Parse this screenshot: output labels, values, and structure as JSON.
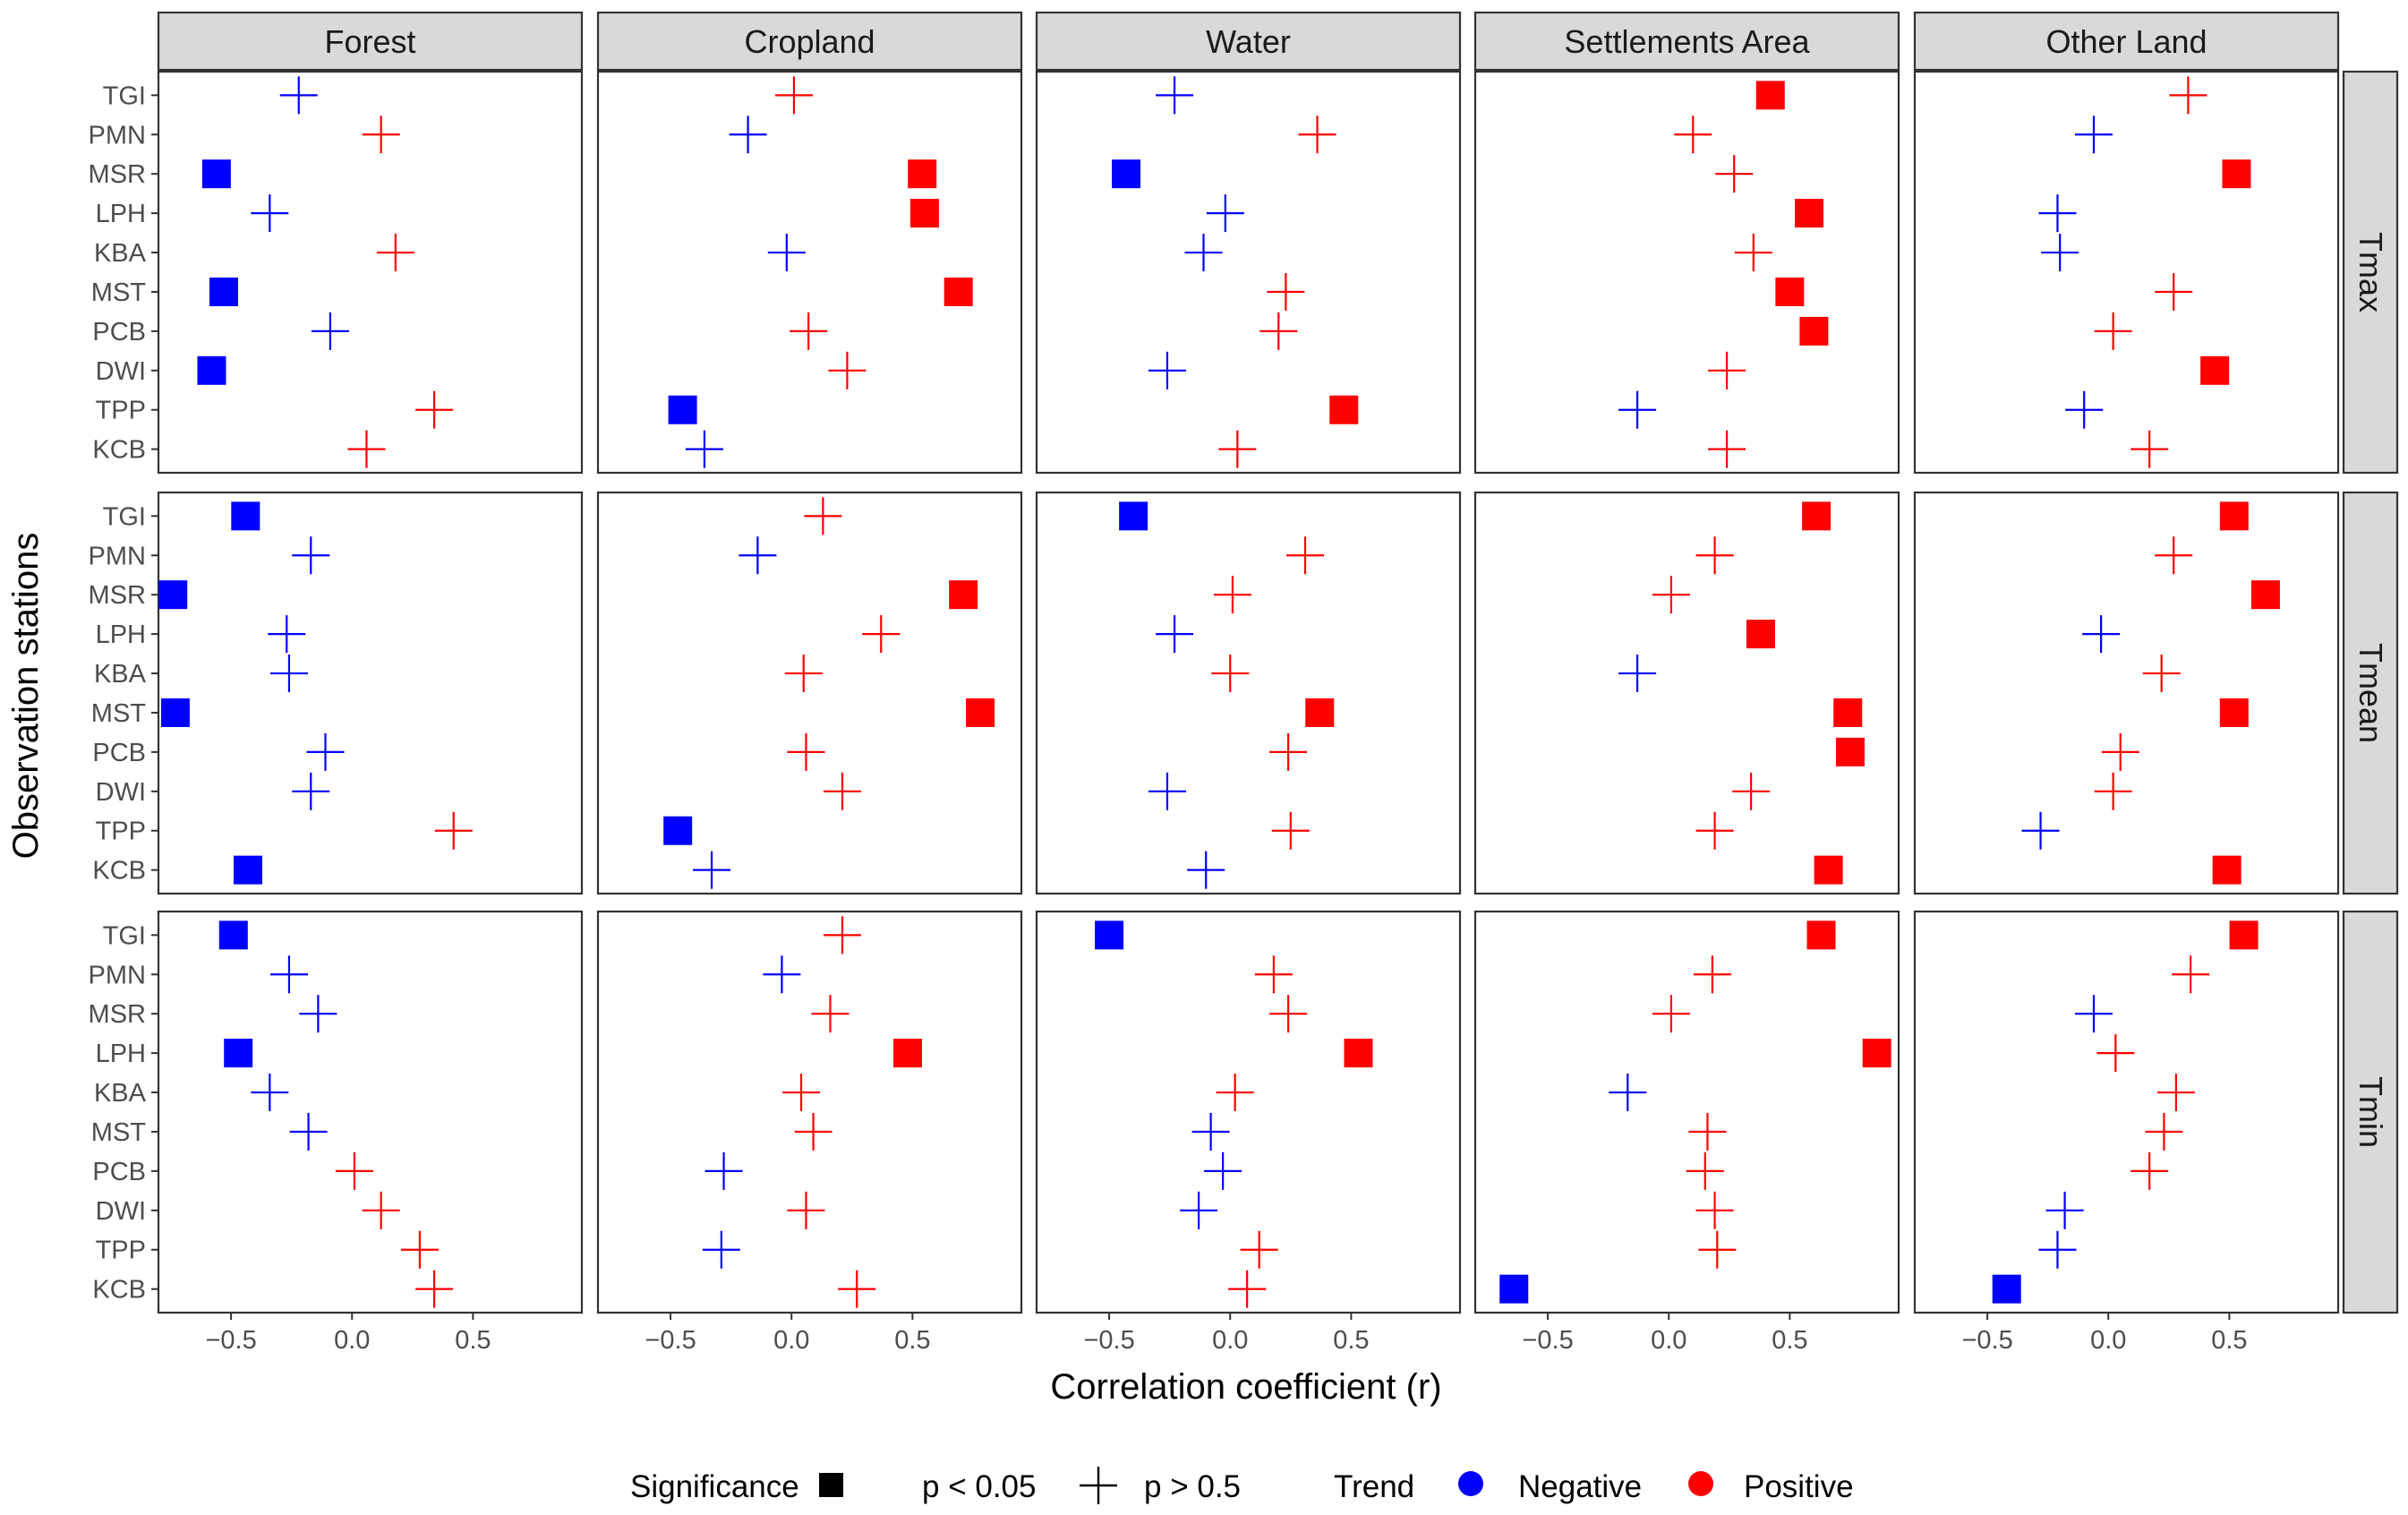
{
  "chart_data": {
    "type": "scatter",
    "title": "",
    "xlabel": "Correlation coefficient (r)",
    "ylabel": "Observation stations",
    "xlim": [
      -0.8,
      0.95
    ],
    "x_ticks": [
      -0.5,
      0.0,
      0.5
    ],
    "x_tick_labels": [
      "−0.5",
      "0.0",
      "0.5"
    ],
    "grid": false,
    "facets": {
      "columns": [
        "Forest",
        "Cropland",
        "Water",
        "Settlements Area",
        "Other Land"
      ],
      "rows": [
        "Tmax",
        "Tmean",
        "Tmin"
      ]
    },
    "stations": [
      "TGI",
      "PMN",
      "MSR",
      "LPH",
      "KBA",
      "MST",
      "PCB",
      "DWI",
      "TPP",
      "KCB"
    ],
    "colors": {
      "negative": "#0000ff",
      "positive": "#ff0000"
    },
    "legend": {
      "position": "bottom",
      "significance_title": "Significance",
      "significant_label": "p < 0.05",
      "nonsignificant_label": "p >  0.5",
      "trend_title": "Trend",
      "negative_label": "Negative",
      "positive_label": "Positive"
    },
    "encoding": "each cell: [r, significant(1 = square, 0 = cross)]; color = sign of r",
    "values": {
      "Tmax": {
        "Forest": [
          [
            -0.22,
            0
          ],
          [
            0.12,
            0
          ],
          [
            -0.56,
            1
          ],
          [
            -0.34,
            0
          ],
          [
            0.18,
            0
          ],
          [
            -0.53,
            1
          ],
          [
            -0.09,
            0
          ],
          [
            -0.58,
            1
          ],
          [
            0.34,
            0
          ],
          [
            0.06,
            0
          ]
        ],
        "Cropland": [
          [
            0.01,
            0
          ],
          [
            -0.18,
            0
          ],
          [
            0.54,
            1
          ],
          [
            0.55,
            1
          ],
          [
            -0.02,
            0
          ],
          [
            0.69,
            1
          ],
          [
            0.07,
            0
          ],
          [
            0.23,
            0
          ],
          [
            -0.45,
            1
          ],
          [
            -0.36,
            0
          ]
        ],
        "Water": [
          [
            -0.23,
            0
          ],
          [
            0.36,
            0
          ],
          [
            -0.43,
            1
          ],
          [
            -0.02,
            0
          ],
          [
            -0.11,
            0
          ],
          [
            0.23,
            0
          ],
          [
            0.2,
            0
          ],
          [
            -0.26,
            0
          ],
          [
            0.47,
            1
          ],
          [
            0.03,
            0
          ]
        ],
        "Settlements Area": [
          [
            0.42,
            1
          ],
          [
            0.1,
            0
          ],
          [
            0.27,
            0
          ],
          [
            0.58,
            1
          ],
          [
            0.35,
            0
          ],
          [
            0.5,
            1
          ],
          [
            0.6,
            1
          ],
          [
            0.24,
            0
          ],
          [
            -0.13,
            0
          ],
          [
            0.24,
            0
          ]
        ],
        "Other Land": [
          [
            0.33,
            0
          ],
          [
            -0.06,
            0
          ],
          [
            0.53,
            1
          ],
          [
            -0.21,
            0
          ],
          [
            -0.2,
            0
          ],
          [
            0.27,
            0
          ],
          [
            0.02,
            0
          ],
          [
            0.44,
            1
          ],
          [
            -0.1,
            0
          ],
          [
            0.17,
            0
          ]
        ]
      },
      "Tmean": {
        "Forest": [
          [
            -0.44,
            1
          ],
          [
            -0.17,
            0
          ],
          [
            -0.74,
            1
          ],
          [
            -0.27,
            0
          ],
          [
            -0.26,
            0
          ],
          [
            -0.73,
            1
          ],
          [
            -0.11,
            0
          ],
          [
            -0.17,
            0
          ],
          [
            0.42,
            0
          ],
          [
            -0.43,
            1
          ]
        ],
        "Cropland": [
          [
            0.13,
            0
          ],
          [
            -0.14,
            0
          ],
          [
            0.71,
            1
          ],
          [
            0.37,
            0
          ],
          [
            0.05,
            0
          ],
          [
            0.78,
            1
          ],
          [
            0.06,
            0
          ],
          [
            0.21,
            0
          ],
          [
            -0.47,
            1
          ],
          [
            -0.33,
            0
          ]
        ],
        "Water": [
          [
            -0.4,
            1
          ],
          [
            0.31,
            0
          ],
          [
            0.01,
            0
          ],
          [
            -0.23,
            0
          ],
          [
            0.0,
            0
          ],
          [
            0.37,
            1
          ],
          [
            0.24,
            0
          ],
          [
            -0.26,
            0
          ],
          [
            0.25,
            0
          ],
          [
            -0.1,
            0
          ]
        ],
        "Settlements Area": [
          [
            0.61,
            1
          ],
          [
            0.19,
            0
          ],
          [
            0.01,
            0
          ],
          [
            0.38,
            1
          ],
          [
            -0.13,
            0
          ],
          [
            0.74,
            1
          ],
          [
            0.75,
            1
          ],
          [
            0.34,
            0
          ],
          [
            0.19,
            0
          ],
          [
            0.66,
            1
          ]
        ],
        "Other Land": [
          [
            0.52,
            1
          ],
          [
            0.27,
            0
          ],
          [
            0.65,
            1
          ],
          [
            -0.03,
            0
          ],
          [
            0.22,
            0
          ],
          [
            0.52,
            1
          ],
          [
            0.05,
            0
          ],
          [
            0.02,
            0
          ],
          [
            -0.28,
            0
          ],
          [
            0.49,
            1
          ]
        ]
      },
      "Tmin": {
        "Forest": [
          [
            -0.49,
            1
          ],
          [
            -0.26,
            0
          ],
          [
            -0.14,
            0
          ],
          [
            -0.47,
            1
          ],
          [
            -0.34,
            0
          ],
          [
            -0.18,
            0
          ],
          [
            0.01,
            0
          ],
          [
            0.12,
            0
          ],
          [
            0.28,
            0
          ],
          [
            0.34,
            0
          ]
        ],
        "Cropland": [
          [
            0.21,
            0
          ],
          [
            -0.04,
            0
          ],
          [
            0.16,
            0
          ],
          [
            0.48,
            1
          ],
          [
            0.04,
            0
          ],
          [
            0.09,
            0
          ],
          [
            -0.28,
            0
          ],
          [
            0.06,
            0
          ],
          [
            -0.29,
            0
          ],
          [
            0.27,
            0
          ]
        ],
        "Water": [
          [
            -0.5,
            1
          ],
          [
            0.18,
            0
          ],
          [
            0.24,
            0
          ],
          [
            0.53,
            1
          ],
          [
            0.02,
            0
          ],
          [
            -0.08,
            0
          ],
          [
            -0.03,
            0
          ],
          [
            -0.13,
            0
          ],
          [
            0.12,
            0
          ],
          [
            0.07,
            0
          ]
        ],
        "Settlements Area": [
          [
            0.63,
            1
          ],
          [
            0.18,
            0
          ],
          [
            0.01,
            0
          ],
          [
            0.86,
            1
          ],
          [
            -0.17,
            0
          ],
          [
            0.16,
            0
          ],
          [
            0.15,
            0
          ],
          [
            0.19,
            0
          ],
          [
            0.2,
            0
          ],
          [
            -0.64,
            1
          ]
        ],
        "Other Land": [
          [
            0.56,
            1
          ],
          [
            0.34,
            0
          ],
          [
            -0.06,
            0
          ],
          [
            0.03,
            0
          ],
          [
            0.28,
            0
          ],
          [
            0.23,
            0
          ],
          [
            0.17,
            0
          ],
          [
            -0.18,
            0
          ],
          [
            -0.21,
            0
          ],
          [
            -0.42,
            1
          ]
        ]
      }
    }
  }
}
